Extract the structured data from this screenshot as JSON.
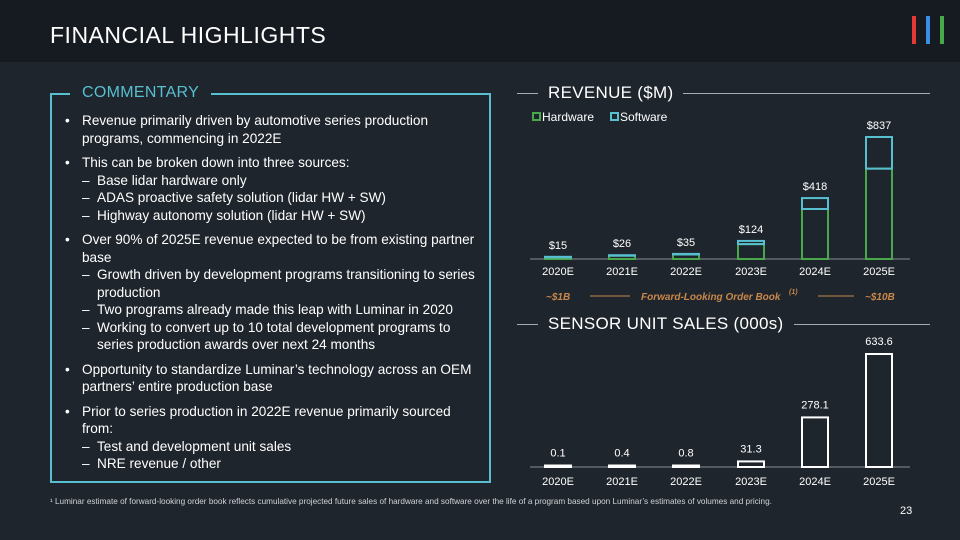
{
  "title": "FINANCIAL HIGHLIGHTS",
  "brand_bar_colors": [
    "#e53935",
    "#3a8ee6",
    "#49a84a"
  ],
  "commentary": {
    "heading": "COMMENTARY",
    "b1": "Revenue primarily driven by automotive series production programs, commencing in 2022E",
    "b2": "This can be broken down into three sources:",
    "b2_s1": "Base lidar hardware only",
    "b2_s2": "ADAS proactive safety solution (lidar HW + SW)",
    "b2_s3": "Highway autonomy solution (lidar HW + SW)",
    "b3": "Over 90% of 2025E revenue expected to be from existing partner base",
    "b3_s1": "Growth driven by development programs transitioning to series production",
    "b3_s2": "Two programs already made this leap with Luminar in 2020",
    "b3_s3": "Working to convert up to 10 total development programs to series production awards over next 24 months",
    "b4": "Opportunity to standardize Luminar’s technology across an OEM partners’ entire production base",
    "b5": "Prior to series production in 2022E revenue primarily sourced from:",
    "b5_s1": "Test and development unit sales",
    "b5_s2": "NRE revenue / other"
  },
  "order_book": {
    "left": "~$1B",
    "label": "Forward-Looking Order Book",
    "superscript": "(1)",
    "right": "~$10B",
    "color": "#c8874a"
  },
  "footnote": "¹ Luminar estimate of forward-looking order book reflects cumulative projected future sales of hardware and software over the life of a program based upon Luminar’s estimates of volumes and pricing.",
  "page_number": "23",
  "chart_data": [
    {
      "type": "bar",
      "stacked": true,
      "title": "REVENUE ($M)",
      "categories": [
        "2020E",
        "2021E",
        "2022E",
        "2023E",
        "2024E",
        "2025E"
      ],
      "series": [
        {
          "name": "Hardware",
          "color": "#49a84a",
          "values": [
            13,
            23,
            31,
            102,
            343,
            620
          ]
        },
        {
          "name": "Software",
          "color": "#57bfd0",
          "values": [
            2,
            3,
            4,
            22,
            75,
            217
          ]
        }
      ],
      "totals": [
        15,
        26,
        35,
        124,
        418,
        837
      ],
      "total_labels": [
        "$15",
        "$26",
        "$35",
        "$124",
        "$418",
        "$837"
      ],
      "legend_position": "top-left",
      "ylim": [
        0,
        837
      ]
    },
    {
      "type": "bar",
      "title": "SENSOR UNIT SALES (000s)",
      "categories": [
        "2020E",
        "2021E",
        "2022E",
        "2023E",
        "2024E",
        "2025E"
      ],
      "values": [
        0.1,
        0.4,
        0.8,
        31.3,
        278.1,
        633.6
      ],
      "value_labels": [
        "0.1",
        "0.4",
        "0.8",
        "31.3",
        "278.1",
        "633.6"
      ],
      "color": "#ffffff",
      "ylim": [
        0,
        633.6
      ]
    }
  ]
}
